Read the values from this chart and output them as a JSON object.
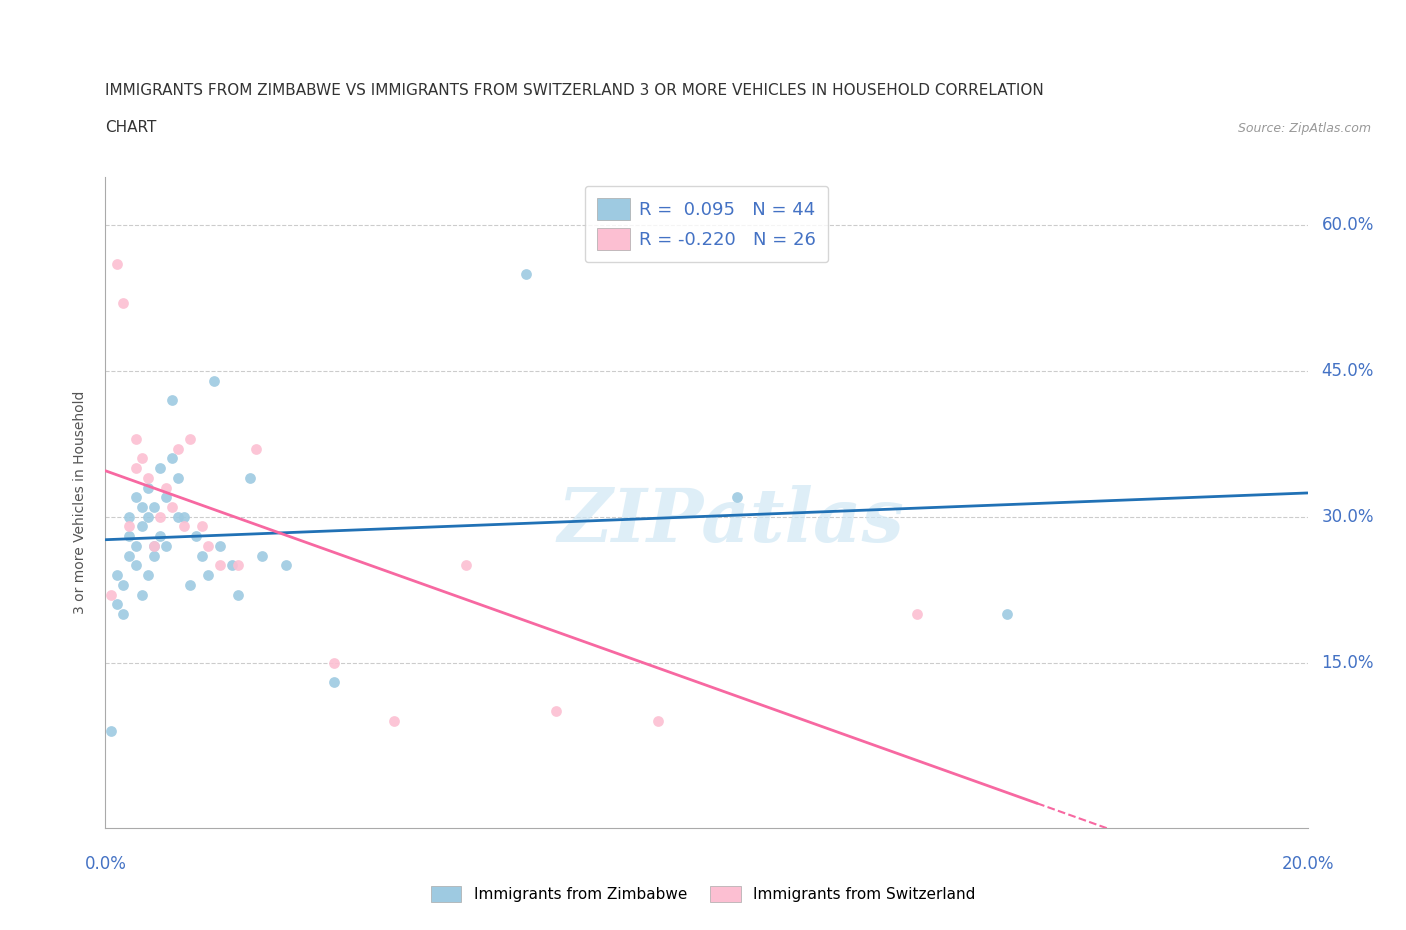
{
  "title_line1": "IMMIGRANTS FROM ZIMBABWE VS IMMIGRANTS FROM SWITZERLAND 3 OR MORE VEHICLES IN HOUSEHOLD CORRELATION",
  "title_line2": "CHART",
  "source_text": "Source: ZipAtlas.com",
  "ylabel": "3 or more Vehicles in Household",
  "xlim": [
    0.0,
    0.2
  ],
  "ylim": [
    -0.02,
    0.65
  ],
  "yticks": [
    0.15,
    0.3,
    0.45,
    0.6
  ],
  "ytick_labels": [
    "15.0%",
    "30.0%",
    "45.0%",
    "60.0%"
  ],
  "xticks": [
    0.0,
    0.04,
    0.08,
    0.12,
    0.16,
    0.2
  ],
  "color_zimbabwe": "#9ecae1",
  "color_switzerland": "#fcbfd2",
  "color_zim_line": "#2171b5",
  "color_swi_line": "#f768a1",
  "R_zimbabwe": 0.095,
  "N_zimbabwe": 44,
  "R_switzerland": -0.22,
  "N_switzerland": 26,
  "zimbabwe_x": [
    0.001,
    0.002,
    0.002,
    0.003,
    0.003,
    0.004,
    0.004,
    0.004,
    0.005,
    0.005,
    0.005,
    0.006,
    0.006,
    0.006,
    0.007,
    0.007,
    0.007,
    0.008,
    0.008,
    0.008,
    0.009,
    0.009,
    0.01,
    0.01,
    0.011,
    0.011,
    0.012,
    0.012,
    0.013,
    0.014,
    0.015,
    0.016,
    0.017,
    0.018,
    0.019,
    0.021,
    0.022,
    0.024,
    0.026,
    0.03,
    0.038,
    0.07,
    0.105,
    0.15
  ],
  "zimbabwe_y": [
    0.08,
    0.21,
    0.24,
    0.2,
    0.23,
    0.26,
    0.28,
    0.3,
    0.25,
    0.27,
    0.32,
    0.22,
    0.29,
    0.31,
    0.24,
    0.3,
    0.33,
    0.26,
    0.31,
    0.27,
    0.28,
    0.35,
    0.27,
    0.32,
    0.36,
    0.42,
    0.3,
    0.34,
    0.3,
    0.23,
    0.28,
    0.26,
    0.24,
    0.44,
    0.27,
    0.25,
    0.22,
    0.34,
    0.26,
    0.25,
    0.13,
    0.55,
    0.32,
    0.2
  ],
  "switzerland_x": [
    0.001,
    0.002,
    0.003,
    0.004,
    0.005,
    0.005,
    0.006,
    0.007,
    0.008,
    0.009,
    0.01,
    0.011,
    0.012,
    0.013,
    0.014,
    0.016,
    0.017,
    0.019,
    0.022,
    0.025,
    0.038,
    0.048,
    0.06,
    0.075,
    0.092,
    0.135
  ],
  "switzerland_y": [
    0.22,
    0.56,
    0.52,
    0.29,
    0.38,
    0.35,
    0.36,
    0.34,
    0.27,
    0.3,
    0.33,
    0.31,
    0.37,
    0.29,
    0.38,
    0.29,
    0.27,
    0.25,
    0.25,
    0.37,
    0.15,
    0.09,
    0.25,
    0.1,
    0.09,
    0.2
  ]
}
